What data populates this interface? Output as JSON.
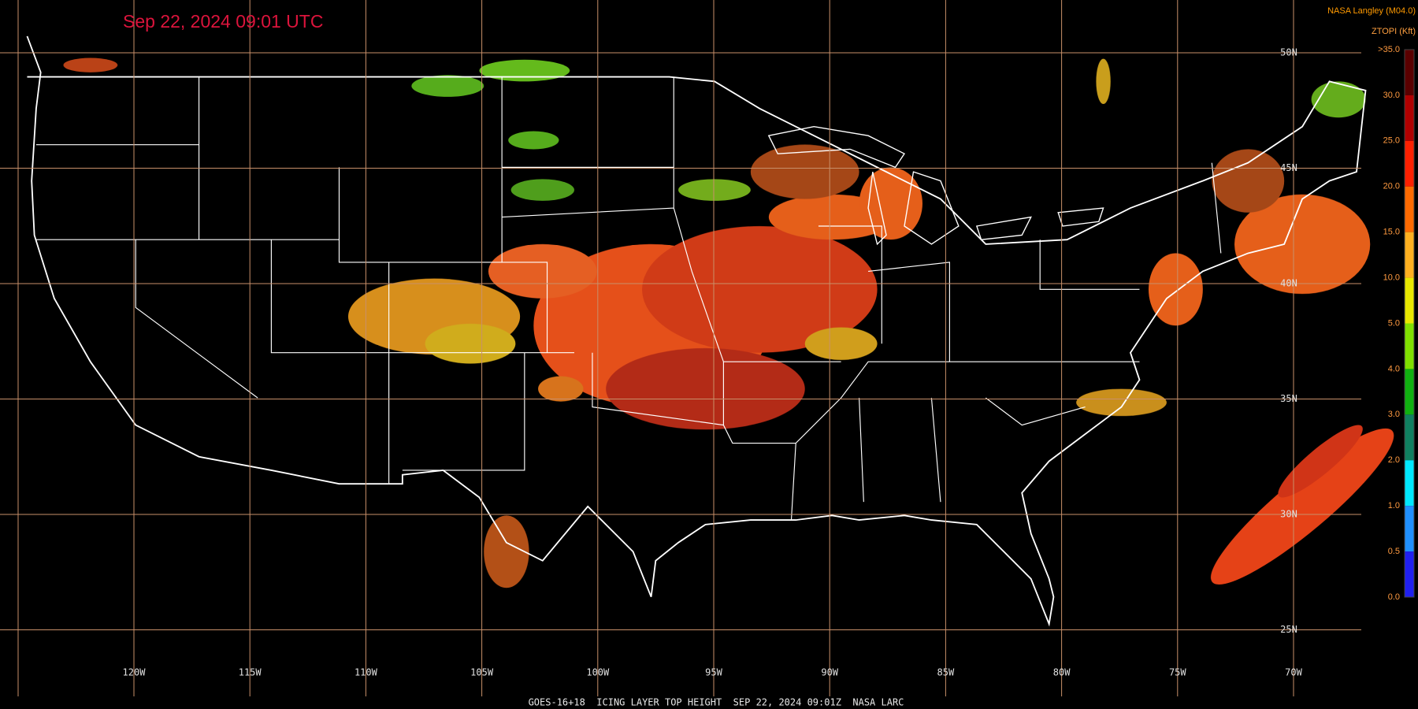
{
  "header": {
    "title": "Sep 22, 2024 09:01 UTC",
    "source": "NASA Langley (M04.0)",
    "product": "ZTOPI (Kft)"
  },
  "colorbar": {
    "labels": [
      ">35.0",
      "30.0",
      "25.0",
      "20.0",
      "15.0",
      "10.0",
      "5.0",
      "4.0",
      "3.0",
      "2.0",
      "1.0",
      "0.5",
      "0.0"
    ]
  },
  "grid": {
    "longitudes": [
      "120W",
      "115W",
      "110W",
      "105W",
      "100W",
      "95W",
      "90W",
      "85W",
      "80W",
      "75W",
      "70W"
    ],
    "latitudes": [
      "50N",
      "45N",
      "40N",
      "35N",
      "30N",
      "25N"
    ]
  },
  "footer": {
    "caption": "GOES-16+18  ICING LAYER TOP HEIGHT  SEP 22, 2024 09:01Z  NASA LARC"
  }
}
